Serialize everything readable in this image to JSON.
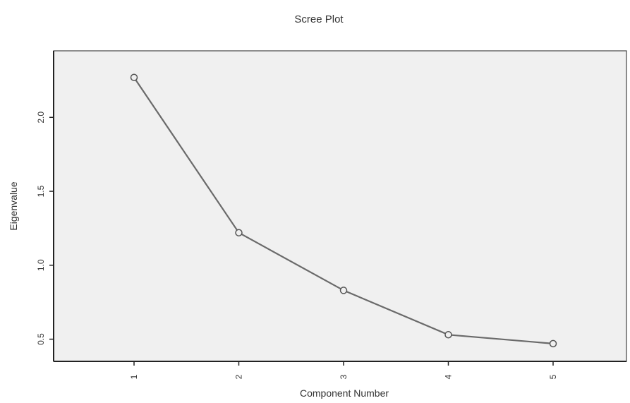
{
  "chart_data": {
    "type": "line",
    "title": "Scree Plot",
    "xlabel": "Component Number",
    "ylabel": "Eigenvalue",
    "categories": [
      "1",
      "2",
      "3",
      "4",
      "5"
    ],
    "values": [
      2.27,
      1.22,
      0.83,
      0.53,
      0.47
    ],
    "yticks": [
      0.5,
      1.0,
      1.5,
      2.0
    ],
    "ytick_labels": [
      "0.5",
      "1.0",
      "1.5",
      "2.0"
    ],
    "ylim": [
      0.35,
      2.45
    ],
    "grid": false,
    "legend": "none"
  }
}
